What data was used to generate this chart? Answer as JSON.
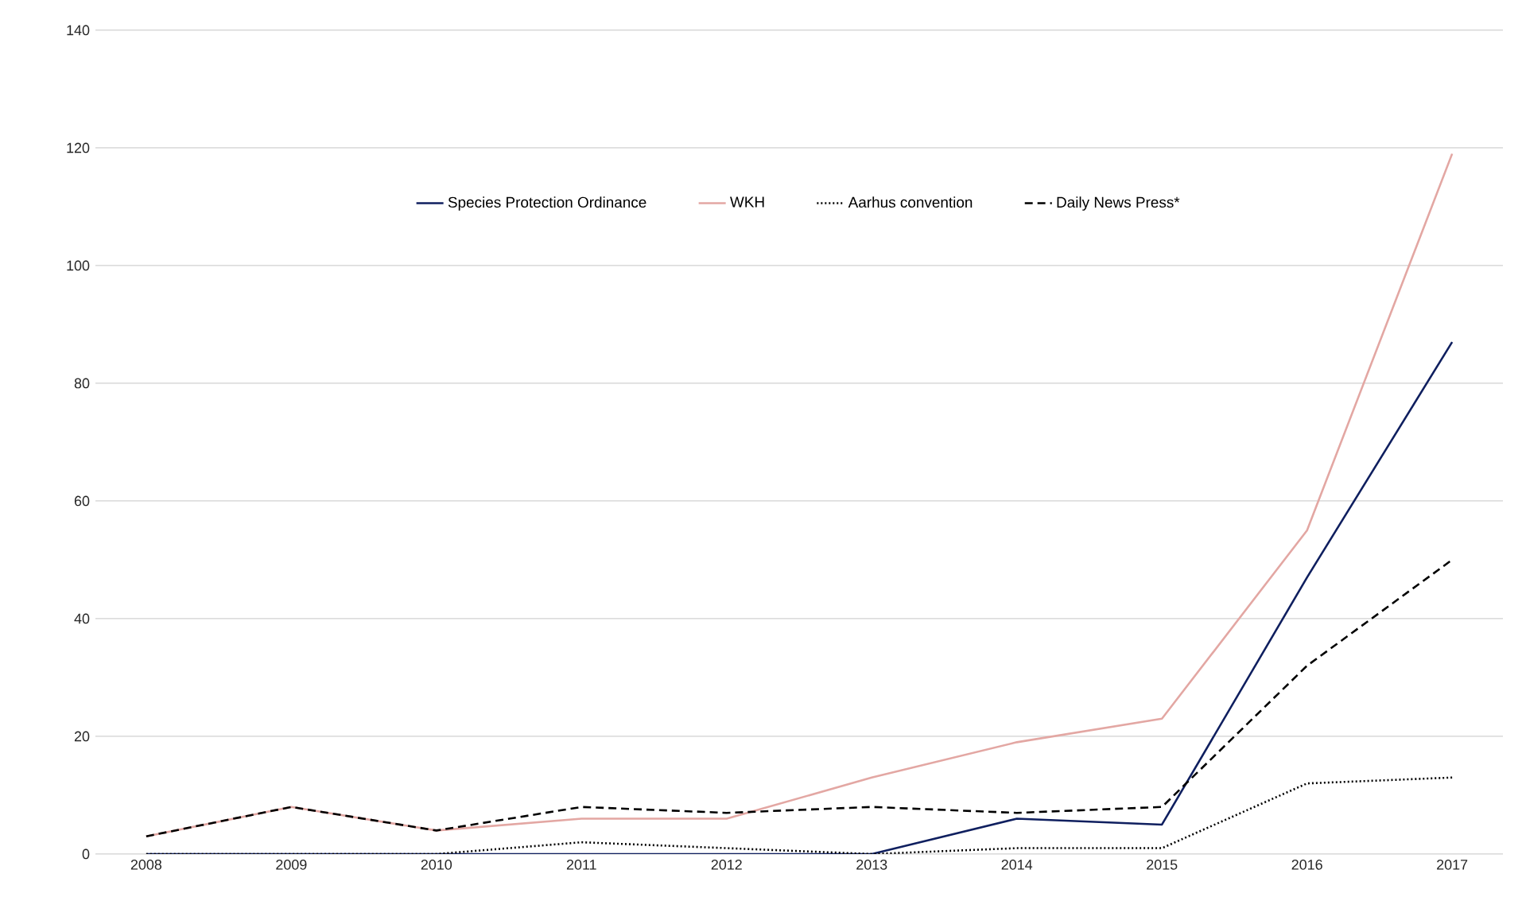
{
  "chart_data": {
    "type": "line",
    "categories": [
      "2008",
      "2009",
      "2010",
      "2011",
      "2012",
      "2013",
      "2014",
      "2015",
      "2016",
      "2017"
    ],
    "series": [
      {
        "name": "Species Protection Ordinance",
        "color": "#0f1f5f",
        "line_style": "solid",
        "values": [
          0,
          0,
          0,
          0,
          0,
          0,
          6,
          5,
          47,
          87
        ]
      },
      {
        "name": "WKH",
        "color": "#e3a7a3",
        "line_style": "solid",
        "values": [
          3,
          8,
          4,
          6,
          6,
          13,
          19,
          23,
          55,
          119
        ]
      },
      {
        "name": "Aarhus convention",
        "color": "#000000",
        "line_style": "dotted",
        "values": [
          0,
          0,
          0,
          2,
          1,
          0,
          1,
          1,
          12,
          13
        ]
      },
      {
        "name": "Daily News Press*",
        "color": "#000000",
        "line_style": "dashed",
        "values": [
          3,
          8,
          4,
          8,
          7,
          8,
          7,
          8,
          32,
          50
        ]
      }
    ],
    "ylim": [
      0,
      140
    ],
    "yticks": [
      0,
      20,
      40,
      60,
      80,
      100,
      120,
      140
    ],
    "grid": "y",
    "legend": "top",
    "marker": "none"
  }
}
